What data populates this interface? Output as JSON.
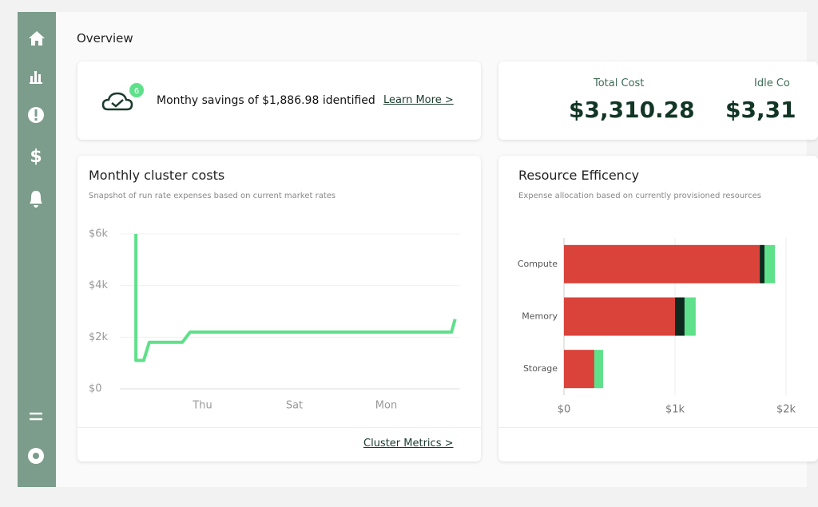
{
  "header": {
    "title": "Overview"
  },
  "savings": {
    "badge": "6",
    "text": "Monthy savings of $1,886.98 identified",
    "link": "Learn More >"
  },
  "stats": [
    {
      "label": "Total Cost",
      "value": "$3,310.28"
    },
    {
      "label": "Idle Co",
      "value": "$3,31"
    }
  ],
  "chart_data": [
    {
      "type": "line",
      "title": "Monthly cluster costs",
      "subtitle": "Snapshot of run rate expenses based on current market rates",
      "x": [
        0.35,
        0.35,
        0.52,
        0.64,
        1.36,
        1.53,
        7.22,
        7.3
      ],
      "values": [
        6000,
        1100,
        1100,
        1800,
        1800,
        2200,
        2200,
        2700
      ],
      "color": "#5fe08a",
      "xlim": [
        0,
        7.4
      ],
      "xticks": [
        {
          "value": 1.8,
          "label": "Thu"
        },
        {
          "value": 3.8,
          "label": "Sat"
        },
        {
          "value": 5.8,
          "label": "Mon"
        }
      ],
      "ylim": [
        0,
        6000
      ],
      "yticks": [
        {
          "value": 0,
          "label": "$0"
        },
        {
          "value": 2000,
          "label": "$2k"
        },
        {
          "value": 4000,
          "label": "$4k"
        },
        {
          "value": 6000,
          "label": "$6k"
        }
      ],
      "grid": true,
      "link": "Cluster Metrics >"
    },
    {
      "type": "hbar",
      "title": "Resource Efficency",
      "subtitle": "Expense allocation based on currently provisioned resources",
      "categories": [
        "Compute",
        "Memory",
        "Storage"
      ],
      "series": [
        {
          "color": "#d9433a",
          "values": [
            1763,
            1000,
            273
          ]
        },
        {
          "color": "#0e2a1e",
          "values": [
            43,
            86,
            0
          ]
        },
        {
          "color": "#5fe08a",
          "values": [
            94,
            100,
            79
          ]
        }
      ],
      "xlim": [
        0,
        2000
      ],
      "xticks": [
        {
          "value": 0,
          "label": "$0"
        },
        {
          "value": 1000,
          "label": "$1k"
        },
        {
          "value": 2000,
          "label": "$2k"
        }
      ],
      "grid": true
    }
  ]
}
